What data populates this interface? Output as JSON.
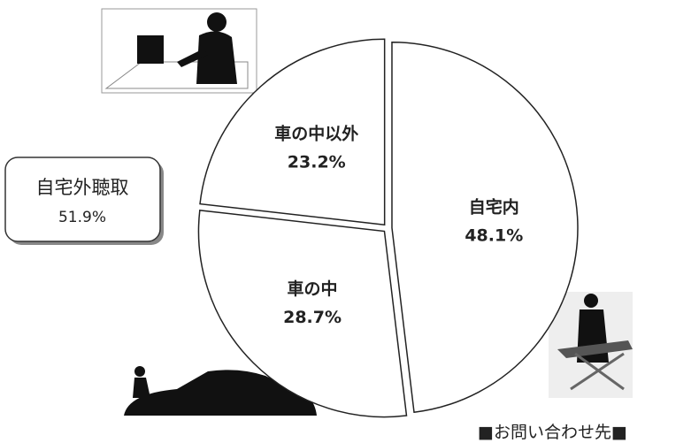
{
  "chart_data": {
    "type": "pie",
    "categories": [
      "自宅内",
      "車の中",
      "車の中以外"
    ],
    "values": [
      48.1,
      28.7,
      23.2
    ],
    "value_labels": [
      "48.1%",
      "28.7%",
      "23.2%"
    ],
    "color": "#ffffff",
    "annotation": {
      "text": "自宅外聴取",
      "value_label": "51.9%"
    },
    "footer": "■お問い合わせ先■"
  }
}
